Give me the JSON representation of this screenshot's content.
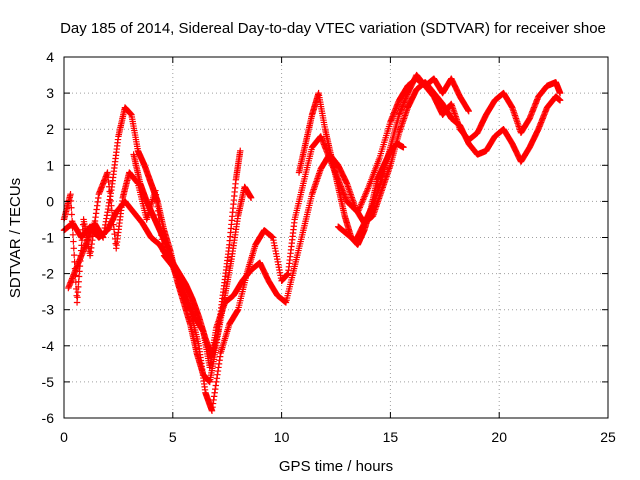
{
  "chart_data": {
    "type": "scatter",
    "title": "Day 185 of 2014, Sidereal Day-to-day VTEC variation (SDTVAR) for receiver shoe",
    "xlabel": "GPS time / hours",
    "ylabel": "SDTVAR / TECUs",
    "xlim": [
      0,
      25
    ],
    "ylim": [
      -6,
      4
    ],
    "xticks": [
      "0",
      "5",
      "10",
      "15",
      "20",
      "25"
    ],
    "yticks": [
      "-6",
      "-5",
      "-4",
      "-3",
      "-2",
      "-1",
      "0",
      "1",
      "2",
      "3",
      "4"
    ],
    "grid": true,
    "marker": "plus",
    "color": "#ff0000",
    "series": [
      {
        "x": [
          0.0,
          0.3,
          0.6,
          0.9,
          1.2,
          1.6,
          2.0,
          2.4,
          2.7,
          3.0,
          3.4,
          3.8,
          4.2,
          4.6,
          5.0,
          5.4,
          5.8,
          6.2,
          6.5,
          6.8,
          7.2,
          7.6,
          8.0,
          8.4,
          8.8,
          9.2,
          9.6,
          10.0,
          10.3,
          10.6,
          11.0,
          11.4,
          11.8,
          12.2,
          12.6,
          13.0,
          13.5,
          14.0,
          14.5,
          15.0,
          15.4,
          15.8,
          16.2,
          16.6,
          17.0,
          17.4,
          17.8,
          18.2,
          18.6,
          19.0,
          19.4,
          19.8,
          20.2,
          20.6,
          21.0,
          21.4,
          21.8,
          22.2,
          22.6,
          22.8
        ],
        "y": [
          -0.5,
          0.2,
          -2.8,
          -0.5,
          -1.5,
          0.2,
          0.8,
          -1.3,
          0.1,
          0.8,
          0.5,
          -0.5,
          0.3,
          -1.5,
          -1.8,
          -2.5,
          -3.0,
          -4.0,
          -5.3,
          -5.8,
          -4.2,
          -3.4,
          -3.0,
          -2.0,
          -1.2,
          -0.8,
          -1.0,
          -2.2,
          -2.0,
          -0.5,
          0.5,
          1.5,
          1.8,
          1.2,
          0.6,
          0.0,
          -0.3,
          0.4,
          1.2,
          2.2,
          2.8,
          3.2,
          3.4,
          3.2,
          2.9,
          2.4,
          2.7,
          2.0,
          1.7,
          1.9,
          2.4,
          2.8,
          3.0,
          2.6,
          1.9,
          2.3,
          2.9,
          3.2,
          3.3,
          3.0
        ]
      },
      {
        "x": [
          0.0,
          0.4,
          0.8,
          1.2,
          1.6,
          2.0,
          2.4,
          2.8,
          3.2,
          3.6,
          4.0,
          4.4,
          4.8,
          5.2,
          5.6,
          6.0,
          6.4,
          6.7,
          7.0,
          7.4,
          7.8,
          8.2,
          8.6,
          9.0,
          9.4,
          9.8,
          10.2,
          10.6,
          11.0,
          11.4,
          11.8,
          12.2,
          12.6,
          13.0,
          13.4,
          13.8,
          14.2,
          14.6,
          15.0,
          15.4,
          15.8,
          16.2,
          16.6,
          17.0,
          17.4,
          17.8,
          18.2,
          18.6,
          19.0,
          19.4,
          19.8,
          20.2,
          20.6,
          21.0,
          21.4,
          21.8,
          22.2,
          22.6,
          22.8
        ],
        "y": [
          -0.8,
          -0.6,
          -1.0,
          -0.7,
          -1.0,
          -0.8,
          -0.3,
          0.0,
          -0.3,
          -0.6,
          -1.0,
          -1.2,
          -1.6,
          -2.0,
          -2.6,
          -3.2,
          -3.6,
          -4.6,
          -3.5,
          -2.8,
          -2.6,
          -2.2,
          -1.9,
          -1.7,
          -2.2,
          -2.6,
          -2.8,
          -1.8,
          -0.8,
          0.2,
          0.9,
          1.3,
          1.0,
          0.5,
          -0.2,
          -0.6,
          -0.4,
          0.3,
          1.0,
          1.9,
          2.6,
          3.1,
          3.3,
          3.0,
          2.7,
          2.3,
          2.1,
          1.6,
          1.3,
          1.4,
          1.8,
          2.0,
          1.6,
          1.1,
          1.5,
          2.0,
          2.6,
          2.9,
          2.8
        ]
      },
      {
        "x": [
          0.2,
          0.6,
          1.0,
          1.4,
          1.8,
          2.2,
          2.5,
          2.8,
          3.1,
          3.4,
          3.7,
          4.0,
          4.3,
          4.6,
          4.9,
          5.2,
          5.5,
          5.8,
          6.1,
          6.4,
          6.7,
          7.0,
          7.3,
          7.6,
          7.9,
          8.1
        ],
        "y": [
          -2.4,
          -1.8,
          -1.2,
          -0.6,
          -1.0,
          0.4,
          1.8,
          2.6,
          2.4,
          1.4,
          1.0,
          0.5,
          0.0,
          -0.8,
          -1.4,
          -2.2,
          -2.8,
          -3.4,
          -4.2,
          -4.8,
          -5.0,
          -4.0,
          -2.6,
          -1.2,
          0.6,
          1.4
        ]
      },
      {
        "x": [
          3.2,
          3.5,
          3.8,
          4.1,
          4.4,
          4.7,
          5.0,
          5.3,
          5.6,
          5.9,
          6.2,
          6.5,
          6.8,
          7.1,
          7.4,
          7.7,
          8.0,
          8.3,
          8.6
        ],
        "y": [
          1.3,
          0.5,
          0.0,
          -0.4,
          -0.8,
          -1.2,
          -1.7,
          -2.0,
          -2.3,
          -2.7,
          -3.2,
          -3.8,
          -4.3,
          -3.6,
          -2.6,
          -1.6,
          -0.4,
          0.4,
          0.1
        ]
      },
      {
        "x": [
          10.8,
          11.1,
          11.4,
          11.7,
          12.0,
          12.3,
          12.6,
          12.9,
          13.2,
          13.5,
          13.8,
          14.1,
          14.4,
          14.7,
          15.0,
          15.3,
          15.6
        ],
        "y": [
          0.8,
          1.6,
          2.4,
          3.0,
          2.0,
          1.2,
          0.4,
          -0.4,
          -1.0,
          -1.2,
          -0.8,
          -0.2,
          0.6,
          1.0,
          1.4,
          1.6,
          1.5
        ]
      },
      {
        "x": [
          12.6,
          13.0,
          13.4,
          13.8,
          14.2,
          14.6,
          15.0,
          15.4,
          15.8,
          16.2,
          16.6,
          17.0,
          17.4,
          17.8,
          18.2,
          18.6
        ],
        "y": [
          -0.7,
          -0.9,
          -1.1,
          -0.6,
          -0.1,
          0.6,
          1.5,
          2.4,
          3.0,
          3.5,
          3.2,
          3.4,
          3.0,
          3.4,
          2.9,
          2.5
        ]
      }
    ]
  }
}
